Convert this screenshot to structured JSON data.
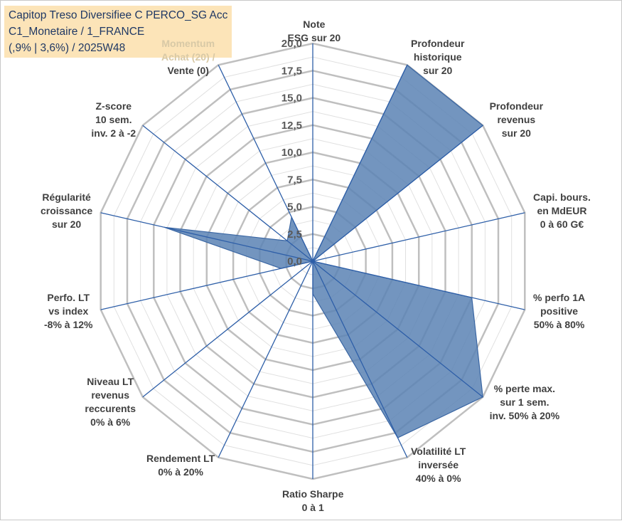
{
  "title_lines": [
    "Capitop Treso Diversifiee C PERCO_SG Acc",
    "C1_Monetaire / 1_FRANCE",
    "(,9% | 3,6%) / 2025W48"
  ],
  "colors": {
    "title_bg": "#fce4b8",
    "title_text": "#1f3864",
    "series_fill": "#5b82b4",
    "series_stroke": "#3a66a3",
    "spoke": "#2e5fa8",
    "grid_major": "#bfbfbf",
    "grid_minor": "#e0e0e0",
    "label_text": "#404040"
  },
  "chart_data": {
    "type": "radar",
    "title": "",
    "rmin": 0,
    "rmax": 20,
    "major_step": 2.5,
    "minor_step": 1.25,
    "grid": true,
    "legend": "none",
    "ticks": [
      "0,0",
      "2,5",
      "5,0",
      "7,5",
      "10,0",
      "12,5",
      "15,0",
      "17,5",
      "20,0"
    ],
    "categories": [
      [
        "Note",
        "ESG sur 20"
      ],
      [
        "Profondeur",
        "historique",
        "sur 20"
      ],
      [
        "Profondeur",
        "revenus",
        "sur 20"
      ],
      [
        "Capi. bours.",
        "en MdEUR",
        "0 à 60 G€"
      ],
      [
        "% perfo 1A",
        "positive",
        "50% à 80%"
      ],
      [
        "% perte max.",
        "sur 1 sem.",
        "inv. 50% à 20%"
      ],
      [
        "Volatilité LT",
        "inversée",
        "40% à 0%"
      ],
      [
        "Ratio Sharpe",
        "0 à 1"
      ],
      [
        "Rendement LT",
        "0% à 20%"
      ],
      [
        "Niveau LT",
        "revenus",
        "reccurents",
        "0% à 6%"
      ],
      [
        "Perfo. LT",
        "vs index",
        "-8% à 12%"
      ],
      [
        "Régularité",
        "croissance",
        "sur 20"
      ],
      [
        "Z-score",
        "10 sem.",
        "inv. 2 à -2"
      ],
      [
        "Momentum",
        "Achat (20) /",
        "Vente (0)"
      ]
    ],
    "series": [
      {
        "values": [
          0,
          20,
          20,
          0,
          15,
          20,
          18,
          3,
          0,
          0,
          3,
          14,
          3,
          4.5
        ]
      }
    ]
  }
}
